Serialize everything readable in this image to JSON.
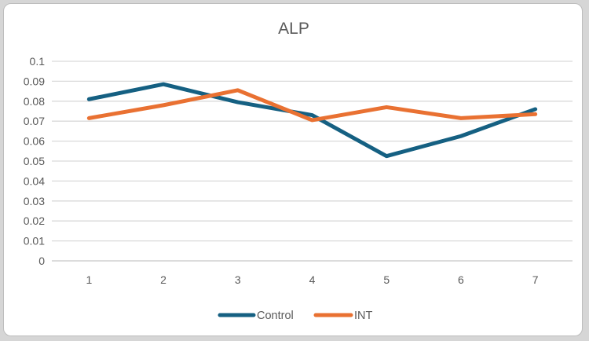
{
  "window": {
    "background": "#d6d6d6",
    "panel_background": "#ffffff",
    "panel_border": "#bdbdbd"
  },
  "chart_data": {
    "type": "line",
    "title": "ALP",
    "categories": [
      "1",
      "2",
      "3",
      "4",
      "5",
      "6",
      "7"
    ],
    "series": [
      {
        "name": "Control",
        "color": "#156082",
        "values": [
          0.081,
          0.0885,
          0.0795,
          0.073,
          0.0525,
          0.0625,
          0.076
        ]
      },
      {
        "name": "INT",
        "color": "#E97132",
        "values": [
          0.0715,
          0.078,
          0.0855,
          0.0705,
          0.077,
          0.0715,
          0.0735
        ]
      }
    ],
    "xlabel": "",
    "ylabel": "",
    "ylim": [
      0,
      0.1
    ],
    "ytick_labels": [
      "0",
      "0.01",
      "0.02",
      "0.03",
      "0.04",
      "0.05",
      "0.06",
      "0.07",
      "0.08",
      "0.09",
      "0.1"
    ],
    "grid": true,
    "legend_position": "bottom",
    "colors": {
      "gridline": "#d9d9d9",
      "axis_line": "#c6c6c6",
      "text": "#595959"
    }
  }
}
